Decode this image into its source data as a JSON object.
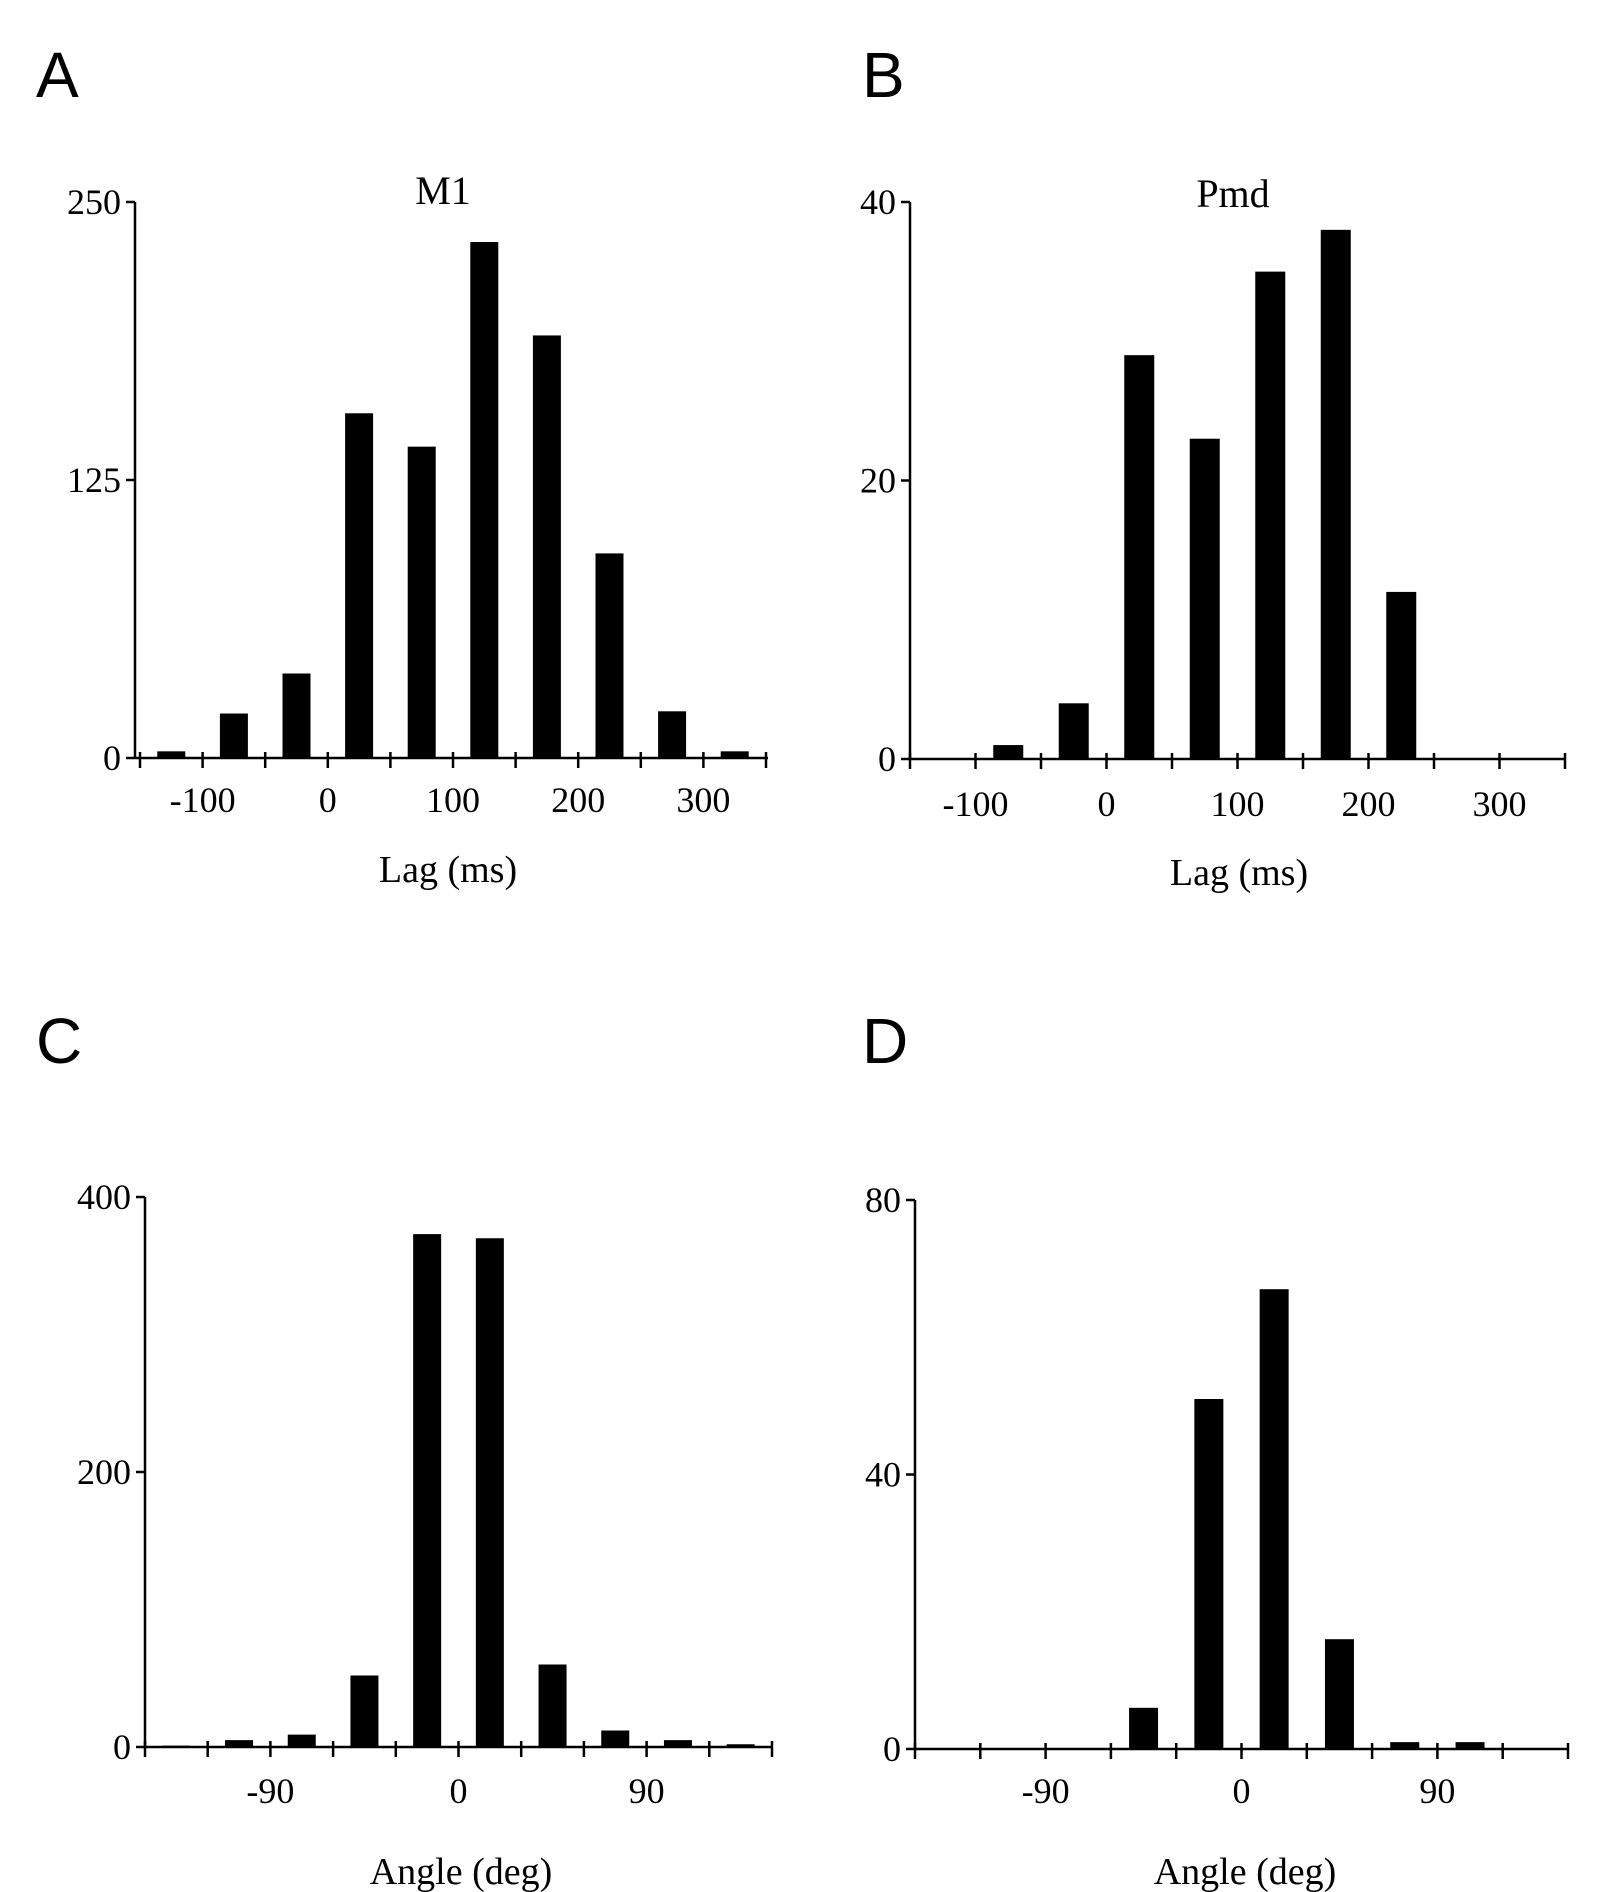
{
  "colors": {
    "bar": "#000000",
    "axis": "#000000",
    "background": "#ffffff"
  },
  "chart_data": [
    {
      "panel": "A",
      "type": "bar",
      "title": "M1",
      "xlabel": "Lag (ms)",
      "ylabel": "",
      "ylim": [
        0,
        250
      ],
      "yticks": [
        0,
        125,
        250
      ],
      "xlim": [
        -150,
        350
      ],
      "xticks": [
        -100,
        0,
        100,
        200,
        300
      ],
      "bin_width": 50,
      "x": [
        -125,
        -75,
        -25,
        25,
        75,
        125,
        175,
        225,
        275,
        325
      ],
      "values": [
        3,
        20,
        38,
        155,
        140,
        232,
        190,
        92,
        21,
        3
      ],
      "grid": false,
      "legend": "none"
    },
    {
      "panel": "B",
      "type": "bar",
      "title": "Pmd",
      "xlabel": "Lag (ms)",
      "ylabel": "",
      "ylim": [
        0,
        40
      ],
      "yticks": [
        0,
        20,
        40
      ],
      "xlim": [
        -150,
        350
      ],
      "xticks": [
        -100,
        0,
        100,
        200,
        300
      ],
      "bin_width": 50,
      "x": [
        -125,
        -75,
        -25,
        25,
        75,
        125,
        175,
        225,
        275,
        325
      ],
      "values": [
        0,
        1,
        4,
        29,
        23,
        35,
        38,
        12,
        0,
        0
      ],
      "grid": false,
      "legend": "none"
    },
    {
      "panel": "C",
      "type": "bar",
      "title": "",
      "xlabel": "Angle (deg)",
      "ylabel": "",
      "ylim": [
        0,
        400
      ],
      "yticks": [
        0,
        200,
        400
      ],
      "xlim": [
        -150,
        150
      ],
      "xticks": [
        -90,
        0,
        90
      ],
      "bin_width": 30,
      "x": [
        -135,
        -105,
        -75,
        -45,
        -15,
        15,
        45,
        75,
        105,
        135
      ],
      "values": [
        1,
        5,
        9,
        52,
        373,
        370,
        60,
        12,
        5,
        2
      ],
      "grid": false,
      "legend": "none"
    },
    {
      "panel": "D",
      "type": "bar",
      "title": "",
      "xlabel": "Angle (deg)",
      "ylabel": "",
      "ylim": [
        0,
        80
      ],
      "yticks": [
        0,
        40,
        80
      ],
      "xlim": [
        -150,
        150
      ],
      "xticks": [
        -90,
        0,
        90
      ],
      "bin_width": 30,
      "x": [
        -135,
        -105,
        -75,
        -45,
        -15,
        15,
        45,
        75,
        105,
        135
      ],
      "values": [
        0,
        0,
        0,
        6,
        51,
        67,
        16,
        1,
        1,
        0
      ],
      "grid": false,
      "legend": "none"
    }
  ]
}
